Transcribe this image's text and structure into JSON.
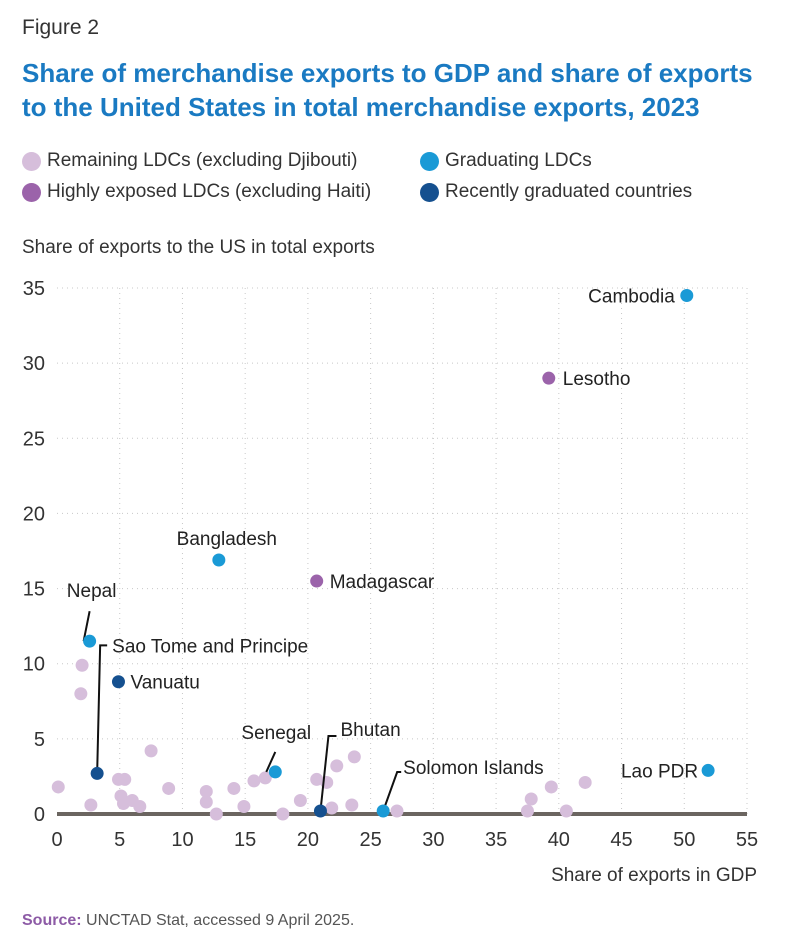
{
  "figure_label": "Figure 2",
  "title": "Share of merchandise exports to GDP and share of exports to the United States in total merchandise exports, 2023",
  "legend": [
    {
      "label": "Remaining LDCs (excluding Djibouti)",
      "color": "#d6bedb"
    },
    {
      "label": "Graduating LDCs",
      "color": "#1a9ad6"
    },
    {
      "label": "Highly exposed LDCs (excluding Haiti)",
      "color": "#9b63aa"
    },
    {
      "label": "Recently graduated countries",
      "color": "#15508f"
    }
  ],
  "source": {
    "label": "Source:",
    "text": " UNCTAD Stat, accessed 9 April 2025."
  },
  "chart_data": {
    "type": "scatter",
    "xlabel": "Share of exports in GDP",
    "ylabel": "Share of exports to the US in total exports",
    "xlim": [
      0,
      55
    ],
    "ylim": [
      0,
      35
    ],
    "xticks": [
      "0",
      "5",
      "10",
      "15",
      "20",
      "25",
      "30",
      "35",
      "40",
      "45",
      "50",
      "55"
    ],
    "yticks": [
      "0",
      "5",
      "10",
      "15",
      "20",
      "25",
      "30",
      "35"
    ],
    "grid": true,
    "series": [
      {
        "name": "Remaining LDCs (excluding Djibouti)",
        "color": "#d6bedb",
        "points": [
          {
            "x": 0.1,
            "y": 1.8
          },
          {
            "x": 2.0,
            "y": 9.9
          },
          {
            "x": 1.9,
            "y": 8.0
          },
          {
            "x": 2.7,
            "y": 0.6
          },
          {
            "x": 4.9,
            "y": 2.3
          },
          {
            "x": 5.4,
            "y": 2.3
          },
          {
            "x": 5.1,
            "y": 1.2
          },
          {
            "x": 5.3,
            "y": 0.7
          },
          {
            "x": 6.0,
            "y": 0.9
          },
          {
            "x": 6.6,
            "y": 0.5
          },
          {
            "x": 7.5,
            "y": 4.2
          },
          {
            "x": 8.9,
            "y": 1.7
          },
          {
            "x": 11.9,
            "y": 1.5
          },
          {
            "x": 11.9,
            "y": 0.8
          },
          {
            "x": 12.7,
            "y": 0.0
          },
          {
            "x": 14.1,
            "y": 1.7
          },
          {
            "x": 14.9,
            "y": 0.5
          },
          {
            "x": 15.7,
            "y": 2.2
          },
          {
            "x": 16.6,
            "y": 2.4
          },
          {
            "x": 18.0,
            "y": 0.0
          },
          {
            "x": 19.4,
            "y": 0.9
          },
          {
            "x": 20.7,
            "y": 2.3
          },
          {
            "x": 21.5,
            "y": 2.1
          },
          {
            "x": 21.9,
            "y": 0.4
          },
          {
            "x": 22.3,
            "y": 3.2
          },
          {
            "x": 23.5,
            "y": 0.6
          },
          {
            "x": 23.7,
            "y": 3.8
          },
          {
            "x": 27.1,
            "y": 0.2
          },
          {
            "x": 37.5,
            "y": 0.2
          },
          {
            "x": 37.8,
            "y": 1.0
          },
          {
            "x": 39.4,
            "y": 1.8
          },
          {
            "x": 40.6,
            "y": 0.2
          },
          {
            "x": 42.1,
            "y": 2.1
          }
        ]
      },
      {
        "name": "Graduating LDCs",
        "color": "#1a9ad6",
        "points": [
          {
            "x": 50.2,
            "y": 34.5,
            "label": "Cambodia"
          },
          {
            "x": 12.9,
            "y": 16.9,
            "label": "Bangladesh"
          },
          {
            "x": 2.6,
            "y": 11.5,
            "label": "Nepal"
          },
          {
            "x": 17.4,
            "y": 2.8,
            "label": "Senegal"
          },
          {
            "x": 26.0,
            "y": 0.2,
            "label": "Solomon Islands"
          },
          {
            "x": 51.9,
            "y": 2.9,
            "label": "Lao PDR"
          }
        ]
      },
      {
        "name": "Highly exposed LDCs (excluding Haiti)",
        "color": "#9b63aa",
        "points": [
          {
            "x": 39.2,
            "y": 29.0,
            "label": "Lesotho"
          },
          {
            "x": 20.7,
            "y": 15.5,
            "label": "Madagascar"
          }
        ]
      },
      {
        "name": "Recently graduated countries",
        "color": "#15508f",
        "points": [
          {
            "x": 4.9,
            "y": 8.8,
            "label": "Vanuatu"
          },
          {
            "x": 3.2,
            "y": 2.7,
            "label": "Sao Tome and Principe"
          },
          {
            "x": 21.0,
            "y": 0.2,
            "label": "Bhutan"
          }
        ]
      }
    ]
  }
}
